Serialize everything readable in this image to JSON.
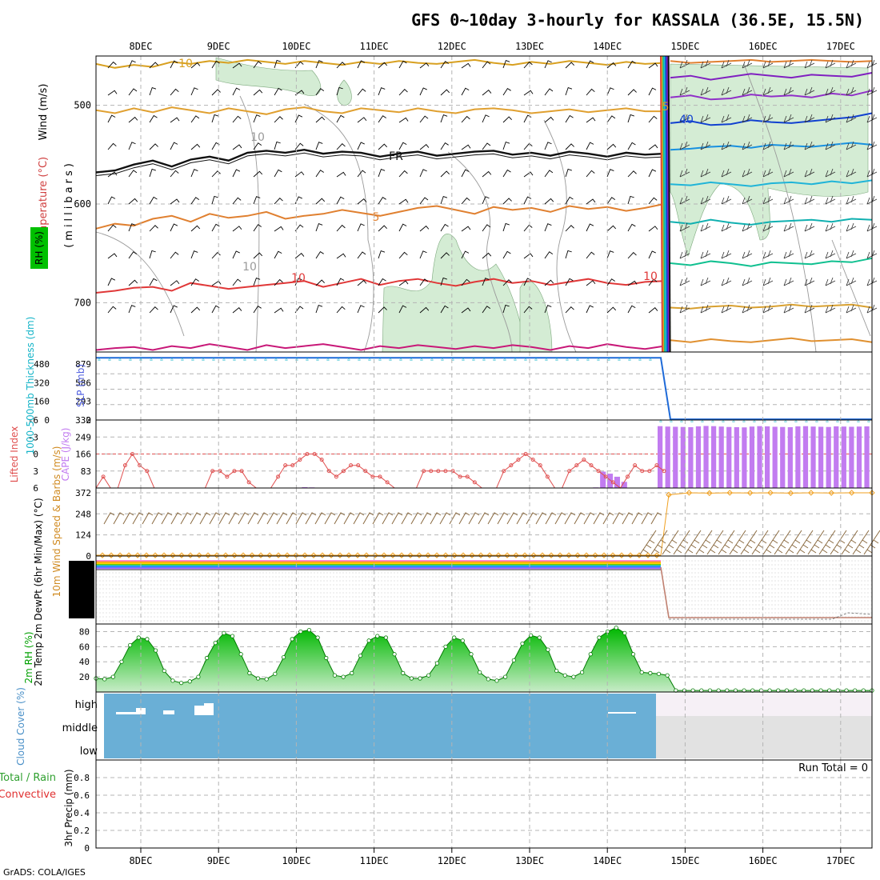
{
  "title": "GFS 0~10day 3-hourly for KASSALA (36.5E, 15.5N)",
  "credit": "GrADS: COLA/IGES",
  "colors": {
    "grid": "#b4b4b4",
    "rh_fill": "#d4ecd4",
    "cloud": "#6aafd6",
    "cape": "#c27cf0",
    "lifted": "#e05050",
    "slp": "#1e6ad8",
    "thickness": "#14b4c8",
    "wind10m": "#f0a020",
    "barb": "#8a6a40",
    "rh2m_dark": "#00b800",
    "rh2m_light": "#c8ecc8"
  },
  "chart_data": {
    "type": "meteogram",
    "x_dates": [
      "8DEC",
      "9DEC",
      "10DEC",
      "11DEC",
      "12DEC",
      "13DEC",
      "14DEC",
      "15DEC",
      "16DEC",
      "17DEC"
    ],
    "panels": {
      "upper_air": {
        "ylabel_wind": "Wind (m/s)",
        "ylabel_temp": "Temperature (°C)",
        "ylabel_units": "(millibars)",
        "ylabel_rh": "RH (%)",
        "yticks": [
          "500",
          "600",
          "700"
        ],
        "ylim": [
          750,
          450
        ],
        "contour_labels": [
          "10",
          "10",
          "FR",
          "5",
          "10",
          "10",
          "5",
          "40",
          "10"
        ],
        "isotherms": [
          {
            "level": "-10",
            "color": "#d8a020",
            "p": [
              458,
              462,
              459,
              461,
              456,
              458,
              455,
              457,
              454,
              456,
              458,
              455,
              457,
              459,
              456,
              458,
              455,
              457,
              458,
              456,
              454,
              457,
              459,
              456,
              458,
              455,
              457,
              459,
              456,
              458,
              457
            ]
          },
          {
            "level": "-5",
            "color": "#e0a030",
            "p": [
              505,
              508,
              503,
              507,
              502,
              505,
              508,
              503,
              506,
              509,
              504,
              502,
              506,
              508,
              503,
              505,
              507,
              503,
              506,
              508,
              504,
              503,
              505,
              508,
              506,
              504,
              507,
              505,
              503,
              506,
              506
            ]
          },
          {
            "level": "0",
            "color": "#111111",
            "p": [
              568,
              566,
              560,
              556,
              562,
              555,
              552,
              556,
              548,
              546,
              548,
              545,
              549,
              547,
              548,
              552,
              549,
              547,
              551,
              549,
              547,
              546,
              550,
              548,
              551,
              547,
              549,
              552,
              548,
              550,
              549
            ]
          },
          {
            "level": "5",
            "color": "#e08030",
            "p": [
              625,
              620,
              622,
              615,
              612,
              618,
              610,
              614,
              612,
              608,
              615,
              612,
              610,
              606,
              609,
              612,
              608,
              604,
              602,
              606,
              610,
              603,
              606,
              604,
              608,
              602,
              605,
              603,
              607,
              604,
              600
            ]
          },
          {
            "level": "10",
            "color": "#e03838",
            "p": [
              690,
              688,
              685,
              684,
              688,
              680,
              683,
              686,
              684,
              682,
              680,
              678,
              684,
              680,
              676,
              682,
              678,
              676,
              680,
              683,
              679,
              676,
              680,
              678,
              682,
              679,
              676,
              680,
              682,
              679,
              678
            ]
          },
          {
            "level": "15",
            "color": "#c81878",
            "p": [
              748,
              746,
              745,
              748,
              744,
              746,
              742,
              745,
              748,
              743,
              746,
              744,
              742,
              745,
              748,
              744,
              746,
              743,
              745,
              747,
              744,
              746,
              743,
              745,
              748,
              744,
              746,
              742,
              745,
              747,
              744
            ]
          }
        ],
        "after_isotherms": [
          {
            "color": "#e08030",
            "p": [
              455,
              457,
              456,
              455,
              454,
              456,
              455,
              454,
              455,
              456,
              455
            ]
          },
          {
            "color": "#8020c0",
            "p": [
              472,
              470,
              474,
              471,
              468,
              470,
              472,
              469,
              470,
              471,
              467
            ]
          },
          {
            "color": "#9030c8",
            "p": [
              492,
              490,
              494,
              493,
              489,
              491,
              490,
              492,
              488,
              490,
              485
            ]
          },
          {
            "color": "#1040d0",
            "p": [
              518,
              516,
              520,
              519,
              515,
              517,
              518,
              516,
              514,
              512,
              508
            ]
          },
          {
            "color": "#1890e0",
            "p": [
              545,
              544,
              542,
              541,
              543,
              540,
              541,
              542,
              540,
              538,
              540
            ]
          },
          {
            "color": "#20b4d8",
            "p": [
              580,
              581,
              578,
              580,
              582,
              579,
              578,
              580,
              577,
              579,
              576
            ]
          },
          {
            "color": "#10b0b0",
            "p": [
              618,
              620,
              616,
              619,
              621,
              618,
              617,
              616,
              618,
              615,
              616
            ]
          },
          {
            "color": "#10c090",
            "p": [
              660,
              662,
              658,
              660,
              663,
              659,
              660,
              661,
              658,
              659,
              655
            ]
          },
          {
            "color": "#d8a030",
            "p": [
              705,
              706,
              704,
              703,
              705,
              704,
              702,
              704,
              703,
              702,
              705
            ]
          },
          {
            "color": "#e09030",
            "p": [
              738,
              740,
              737,
              739,
              740,
              738,
              736,
              739,
              738,
              737,
              740
            ]
          }
        ]
      },
      "thickness_slp": {
        "ylabel_thickness": "1000-500mb Thickness (dm)",
        "ylabel_slp": "SLP (mb)",
        "thickness_ticks": [
          "0",
          "160",
          "320",
          "480"
        ],
        "slp_ticks": [
          "0",
          "293",
          "586",
          "879"
        ],
        "ylim": [
          0,
          1000
        ],
        "series": [
          {
            "name": "SLP",
            "values_before": 1010,
            "values_after": 12
          },
          {
            "name": "Thickness",
            "values_before": 560,
            "values_after": 5
          }
        ]
      },
      "cape_lifted": {
        "ylabel_li": "Lifted Index",
        "ylabel_cape": "CAPE (J/kg)",
        "li_ticks": [
          "-6",
          "-3",
          "0",
          "3",
          "6"
        ],
        "cape_ticks": [
          "83",
          "166",
          "249",
          "332"
        ],
        "cape_ylim": [
          0,
          332
        ],
        "li_ylim": [
          6,
          -6
        ],
        "lifted_index": [
          6,
          4,
          6,
          6,
          2,
          0,
          2,
          3,
          6,
          6,
          6,
          6,
          6,
          6,
          6,
          6,
          3,
          3,
          4,
          3,
          3,
          5,
          6,
          6,
          6,
          4,
          2,
          2,
          1,
          0,
          0,
          1,
          3,
          4,
          3,
          2,
          2,
          3,
          4,
          4,
          5,
          6,
          6,
          6,
          6,
          3,
          3,
          3,
          3,
          3,
          4,
          4,
          5,
          6,
          6,
          6,
          3,
          2,
          1,
          0,
          1,
          2,
          4,
          6,
          6,
          3,
          2,
          1,
          2,
          3,
          4,
          5,
          6,
          4,
          2,
          3,
          3,
          2,
          3
        ],
        "cape": [
          0,
          0,
          0,
          0,
          0,
          0,
          0,
          0,
          0,
          0,
          0,
          0,
          0,
          0,
          0,
          0,
          0,
          0,
          0,
          0,
          0,
          0,
          0,
          0,
          0,
          0,
          0,
          0,
          2,
          4,
          3,
          0,
          0,
          0,
          0,
          0,
          0,
          0,
          0,
          0,
          0,
          0,
          0,
          0,
          0,
          0,
          0,
          0,
          0,
          0,
          0,
          0,
          0,
          0,
          0,
          0,
          0,
          0,
          0,
          0,
          0,
          0,
          0,
          0,
          0,
          2,
          0,
          0,
          0,
          0,
          3,
          80,
          70,
          55,
          30,
          0,
          0,
          0,
          0,
          0
        ],
        "cape_after": [
          302,
          300,
          299,
          298,
          297,
          301,
          303,
          302,
          300,
          298,
          297,
          296,
          300,
          302,
          301,
          299,
          298,
          297,
          301,
          302,
          300,
          299,
          298,
          301,
          300,
          299,
          300,
          301
        ]
      },
      "wind10m": {
        "ylabel": "10m Wind Speed & Barbs (m/s)",
        "yticks": [
          "0",
          "124",
          "248",
          "372"
        ],
        "ylim": [
          0,
          400
        ],
        "speed_before": 4,
        "speed_after": [
          360,
          372,
          370,
          372,
          371,
          372,
          370,
          372,
          371,
          372,
          372
        ]
      },
      "temp2m": {
        "ylabel": "2m Temp 2m DewPt (6hr Min/Max) (°C)",
        "band_colors": [
          "#ff66cc",
          "#ff9900",
          "#ffcc00",
          "#66cc00",
          "#00aaff",
          "#3366ff",
          "#aa66ff",
          "#888888"
        ]
      },
      "rh2m": {
        "ylabel": "2m RH (%)",
        "yticks": [
          "20",
          "40",
          "60",
          "80"
        ],
        "ylim": [
          0,
          90
        ],
        "values": [
          18,
          17,
          20,
          40,
          62,
          72,
          70,
          55,
          28,
          15,
          12,
          14,
          20,
          45,
          65,
          78,
          74,
          50,
          25,
          18,
          17,
          24,
          46,
          70,
          80,
          82,
          72,
          45,
          22,
          20,
          25,
          48,
          68,
          74,
          72,
          50,
          25,
          18,
          18,
          22,
          38,
          60,
          72,
          68,
          50,
          26,
          17,
          15,
          20,
          42,
          64,
          75,
          72,
          56,
          28,
          22,
          20,
          26,
          50,
          72,
          80,
          85,
          78,
          50,
          26,
          25,
          24,
          22,
          2,
          2,
          2,
          2,
          2,
          2,
          2,
          2,
          2,
          2,
          2,
          2,
          2,
          2,
          2,
          2,
          2,
          2,
          2,
          2,
          2,
          2,
          2,
          2
        ]
      },
      "cloud": {
        "ylabel": "Cloud Cover (%)",
        "levels": [
          "high",
          "middle",
          "low"
        ]
      },
      "precip": {
        "ylabel_left": "Total / Rain",
        "ylabel_left2": "Convective",
        "ylabel_units": "3hr Precip (mm)",
        "yticks": [
          "0",
          "0.2",
          "0.4",
          "0.6",
          "0.8"
        ],
        "ylim": [
          0,
          1
        ],
        "run_total": "Run Total = 0"
      }
    }
  }
}
